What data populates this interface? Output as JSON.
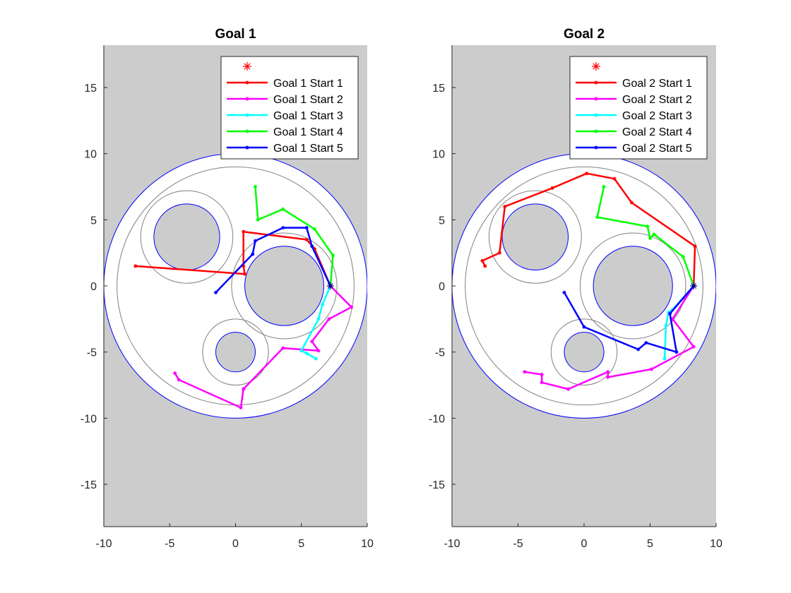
{
  "chart_data": [
    {
      "type": "line",
      "title": "Goal 1",
      "xlim": [
        -10,
        10
      ],
      "ylim": [
        -18.2,
        18.2
      ],
      "xticks": [
        -10,
        -5,
        0,
        5,
        10
      ],
      "yticks": [
        -15,
        -10,
        -5,
        0,
        5,
        10,
        15
      ],
      "grid": false,
      "background_color": "#cccccc",
      "legend": {
        "location": "top-right",
        "first_entry_marker": "*",
        "first_entry_color": "#ff0000"
      },
      "goal": {
        "x": 7.2,
        "y": 0
      },
      "environment": {
        "outer_boundary": {
          "cx": 0,
          "cy": 0,
          "r": 10,
          "color": "#0000ff"
        },
        "outer_clearance": {
          "cx": 0,
          "cy": 0,
          "r": 9
        },
        "obstacles": [
          {
            "cx": -3.7,
            "cy": 3.7,
            "r": 2.5,
            "clearance_r": 3.5
          },
          {
            "cx": 3.7,
            "cy": 0,
            "r": 3.0,
            "clearance_r": 4.0
          },
          {
            "cx": 0,
            "cy": -5,
            "r": 1.5,
            "clearance_r": 2.5
          }
        ]
      },
      "series": [
        {
          "name": "Goal 1 Start 1",
          "color": "#ff0000",
          "x": [
            -7.6,
            0.7,
            0.6,
            0.6,
            5.4,
            6.0,
            7.2
          ],
          "y": [
            1.5,
            0.9,
            1.5,
            4.1,
            3.5,
            2.8,
            0
          ]
        },
        {
          "name": "Goal 1 Start 2",
          "color": "#ff00ff",
          "x": [
            -4.6,
            -4.3,
            0.4,
            0.6,
            3.6,
            6.3,
            5.8,
            7.1,
            8.8,
            7.2
          ],
          "y": [
            -6.6,
            -7.1,
            -9.2,
            -7.8,
            -4.7,
            -4.9,
            -4.2,
            -2.5,
            -1.6,
            0
          ]
        },
        {
          "name": "Goal 1 Start 3",
          "color": "#00ffff",
          "x": [
            6.1,
            5.4,
            5.0,
            6.3,
            6.6,
            7.2
          ],
          "y": [
            -5.5,
            -5.1,
            -4.9,
            -2.5,
            -1.4,
            0
          ]
        },
        {
          "name": "Goal 1 Start 4",
          "color": "#00ff00",
          "x": [
            1.5,
            1.7,
            3.6,
            6.0,
            7.4,
            7.2
          ],
          "y": [
            7.5,
            5.0,
            5.8,
            4.3,
            2.3,
            0
          ]
        },
        {
          "name": "Goal 1 Start 5",
          "color": "#0000ff",
          "x": [
            -1.5,
            1.3,
            1.5,
            3.6,
            5.4,
            5.8,
            7.2
          ],
          "y": [
            -0.5,
            2.4,
            3.4,
            4.4,
            4.4,
            3.0,
            0
          ]
        }
      ]
    },
    {
      "type": "line",
      "title": "Goal 2",
      "xlim": [
        -10,
        10
      ],
      "ylim": [
        -18.2,
        18.2
      ],
      "xticks": [
        -10,
        -5,
        0,
        5,
        10
      ],
      "yticks": [
        -15,
        -10,
        -5,
        0,
        5,
        10,
        15
      ],
      "grid": false,
      "background_color": "#cccccc",
      "legend": {
        "location": "top-right",
        "first_entry_marker": "*",
        "first_entry_color": "#ff0000"
      },
      "goal": {
        "x": 8.3,
        "y": 0
      },
      "environment": {
        "outer_boundary": {
          "cx": 0,
          "cy": 0,
          "r": 10,
          "color": "#0000ff"
        },
        "outer_clearance": {
          "cx": 0,
          "cy": 0,
          "r": 9
        },
        "obstacles": [
          {
            "cx": -3.7,
            "cy": 3.7,
            "r": 2.5,
            "clearance_r": 3.5
          },
          {
            "cx": 3.7,
            "cy": 0,
            "r": 3.0,
            "clearance_r": 4.0
          },
          {
            "cx": 0,
            "cy": -5,
            "r": 1.5,
            "clearance_r": 2.5
          }
        ]
      },
      "series": [
        {
          "name": "Goal 2 Start 1",
          "color": "#ff0000",
          "x": [
            -7.5,
            -7.7,
            -6.4,
            -6.0,
            -2.4,
            0.2,
            2.3,
            3.6,
            8.4,
            8.3
          ],
          "y": [
            1.5,
            1.9,
            2.5,
            6.0,
            7.4,
            8.5,
            8.1,
            6.3,
            3.0,
            0
          ]
        },
        {
          "name": "Goal 2 Start 2",
          "color": "#ff00ff",
          "x": [
            -4.5,
            -3.2,
            -3.2,
            -1.2,
            1.8,
            1.8,
            5.1,
            8.3,
            6.7,
            8.3
          ],
          "y": [
            -6.5,
            -6.7,
            -7.3,
            -7.8,
            -6.5,
            -6.9,
            -6.3,
            -4.6,
            -2.5,
            0
          ]
        },
        {
          "name": "Goal 2 Start 3",
          "color": "#00ffff",
          "x": [
            6.1,
            6.2,
            6.4,
            6.7,
            8.3
          ],
          "y": [
            -5.5,
            -3.0,
            -2.0,
            -1.8,
            0
          ]
        },
        {
          "name": "Goal 2 Start 4",
          "color": "#00ff00",
          "x": [
            1.5,
            1.0,
            4.8,
            5.0,
            5.3,
            7.5,
            8.3
          ],
          "y": [
            7.5,
            5.2,
            4.5,
            3.6,
            3.9,
            2.2,
            0
          ]
        },
        {
          "name": "Goal 2 Start 5",
          "color": "#0000ff",
          "x": [
            -1.5,
            0.0,
            4.1,
            4.7,
            7.0,
            6.5,
            8.3
          ],
          "y": [
            -0.5,
            -3.1,
            -4.8,
            -4.3,
            -5.0,
            -2.1,
            0
          ]
        }
      ]
    }
  ]
}
